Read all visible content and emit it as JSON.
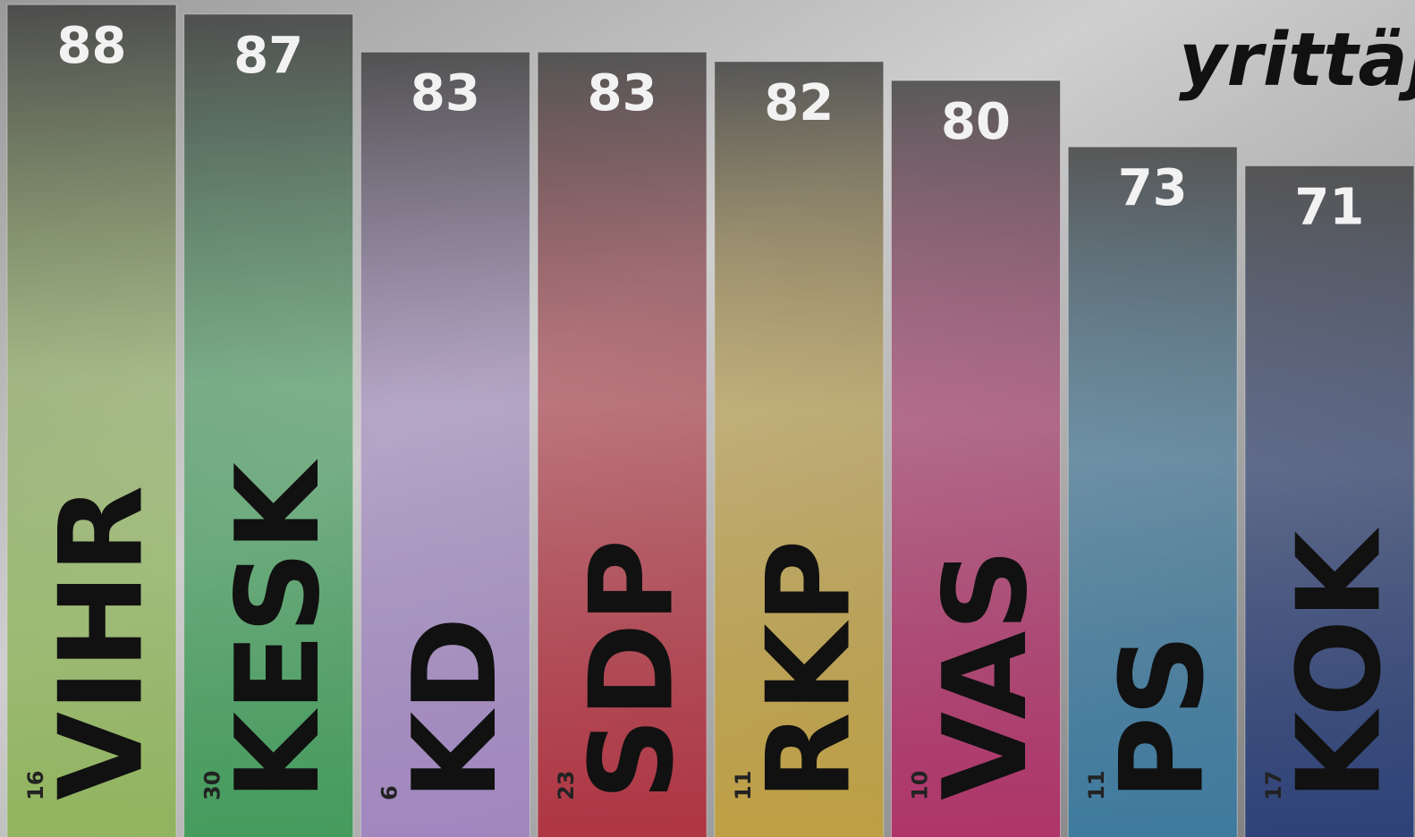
{
  "chart_data": {
    "type": "bar",
    "title": "yrittäjä",
    "categories": [
      "VIHR",
      "KESK",
      "KD",
      "SDP",
      "RKP",
      "VAS",
      "PS",
      "KOK"
    ],
    "values": [
      88,
      87,
      83,
      83,
      82,
      80,
      73,
      71
    ],
    "counts": [
      16,
      30,
      6,
      23,
      11,
      10,
      11,
      17
    ],
    "colors": [
      "#8fb45a",
      "#3f9a58",
      "#a085c0",
      "#b0303e",
      "#c0a040",
      "#b03068",
      "#3a7aa0",
      "#2a3f78"
    ]
  }
}
